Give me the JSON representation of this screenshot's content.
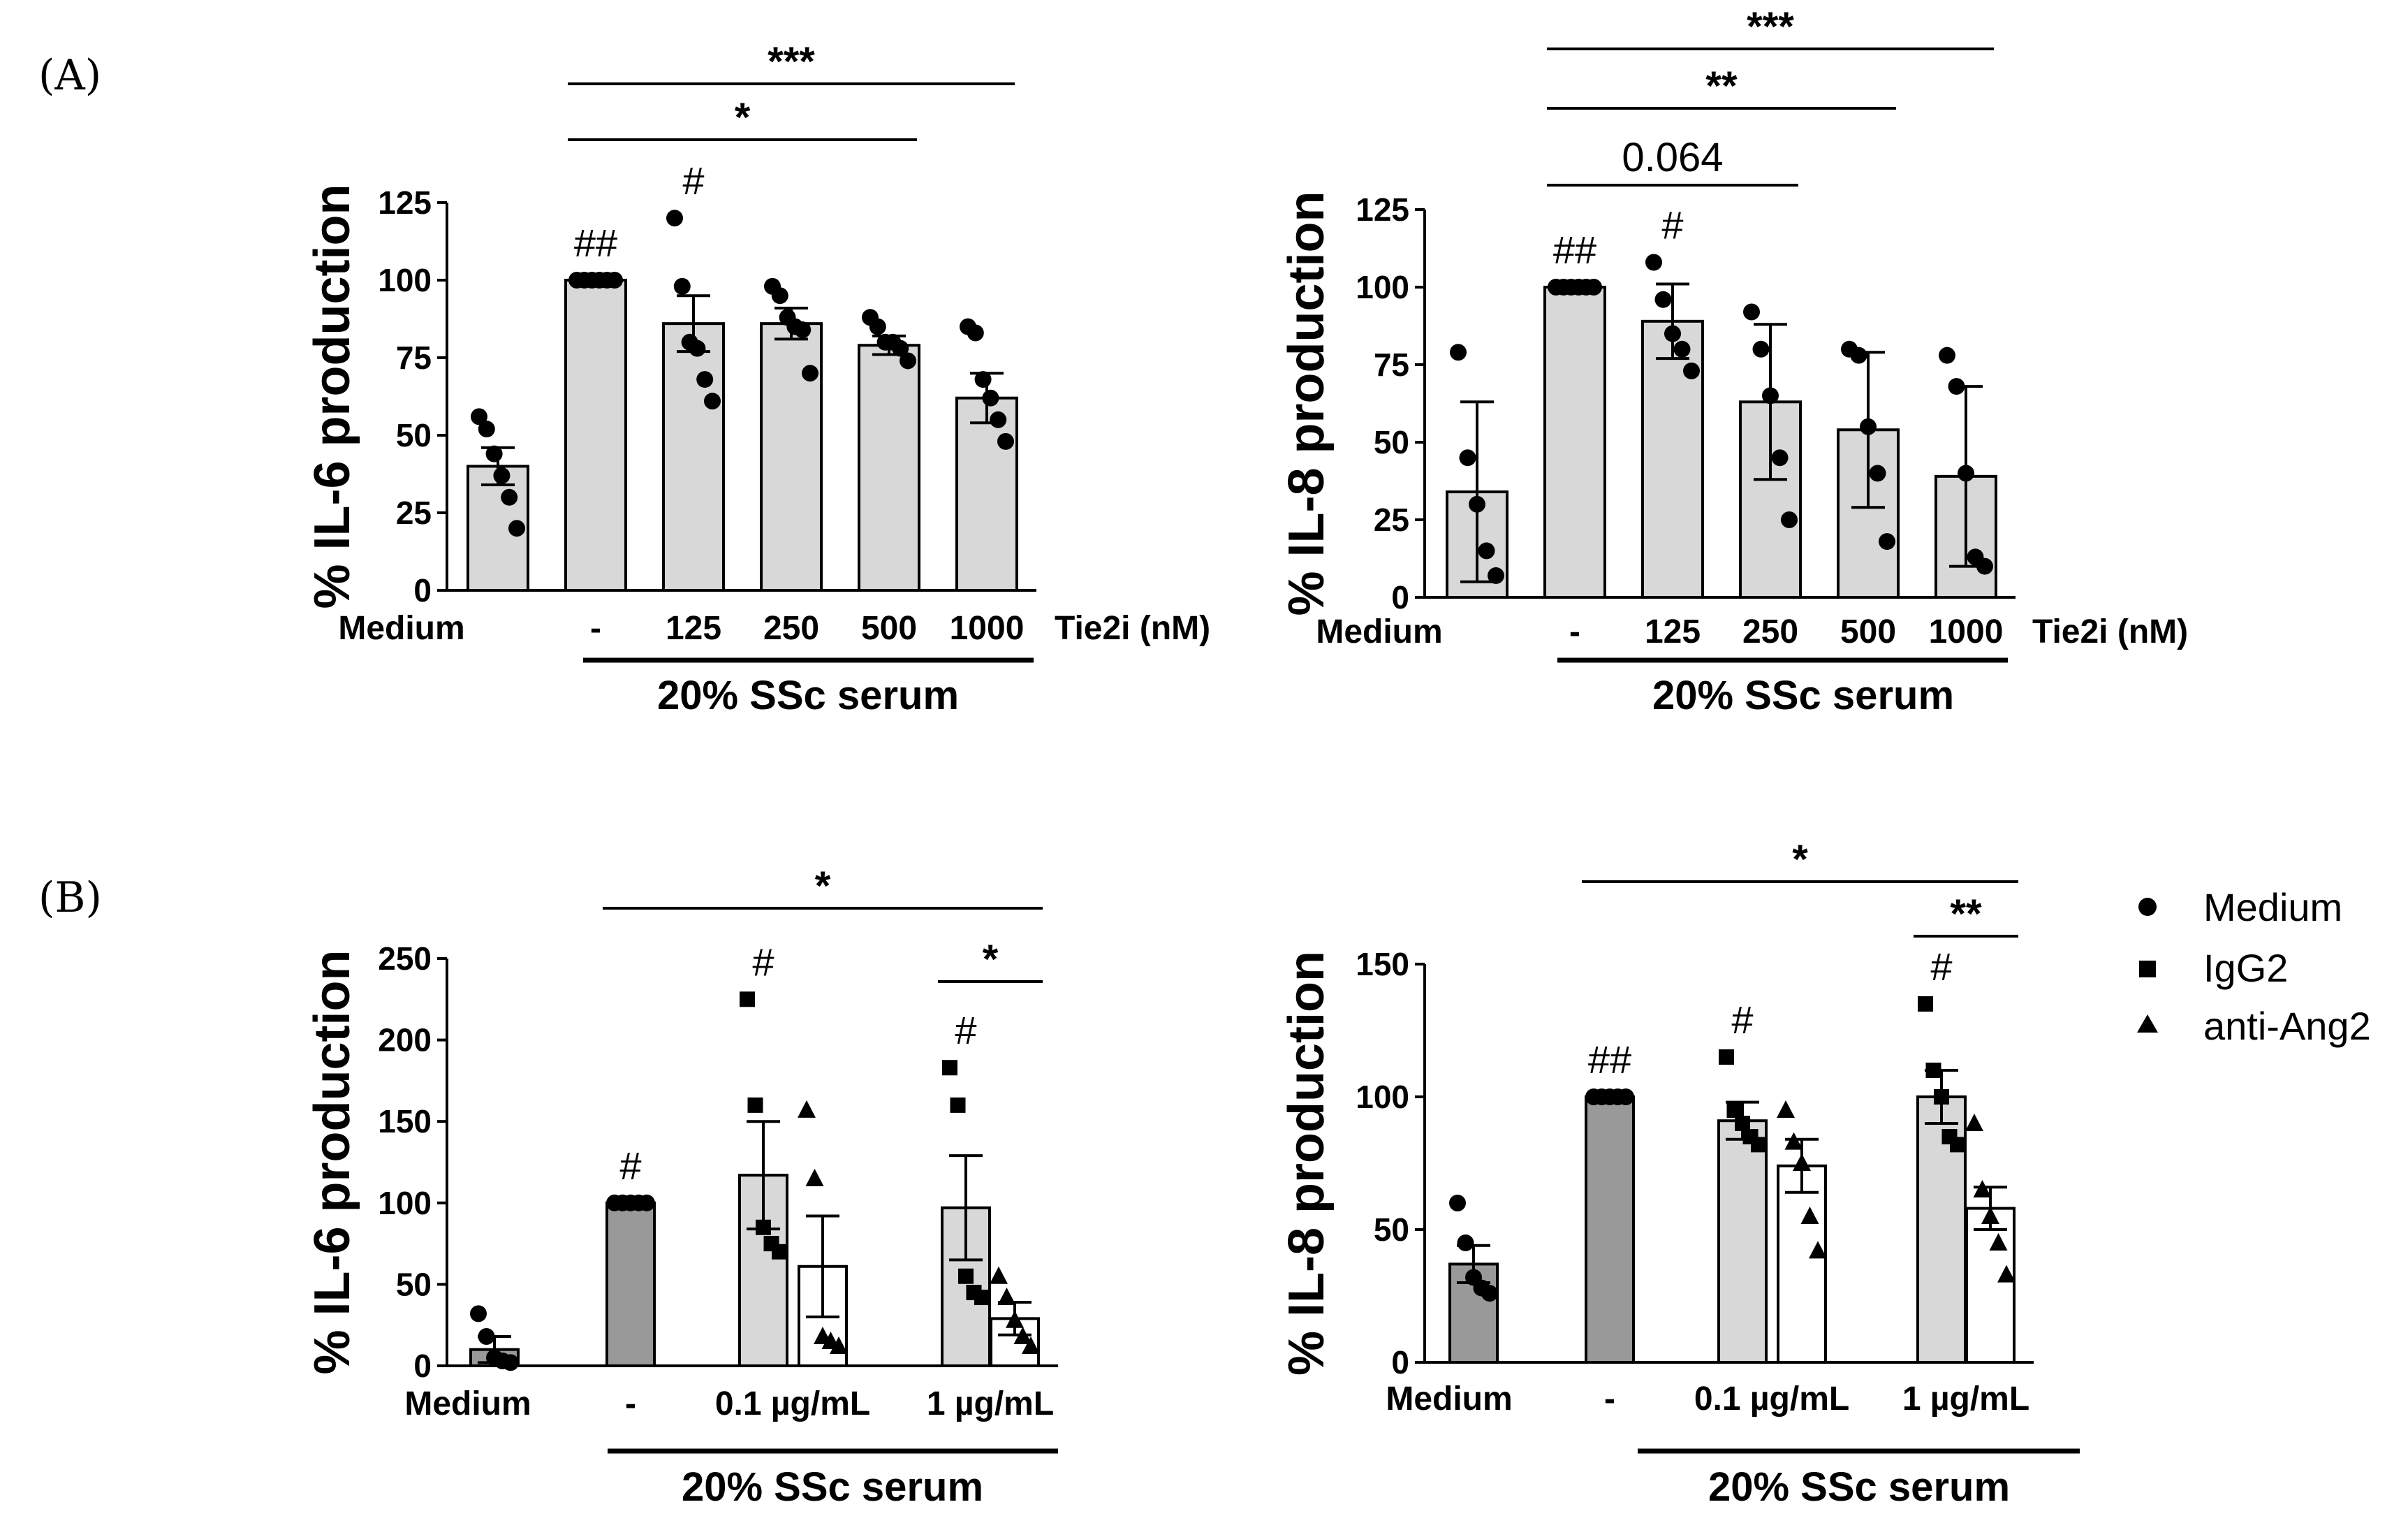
{
  "figure": {
    "panel_labels": [
      "(A)",
      "(B)"
    ],
    "legend": {
      "entries": [
        {
          "label": "Medium",
          "marker": "circle"
        },
        {
          "label": "IgG2",
          "marker": "square"
        },
        {
          "label": "anti-Ang2",
          "marker": "triangle"
        }
      ]
    }
  },
  "chart_data": [
    {
      "type": "bar",
      "panel": "A",
      "title": "",
      "ylabel": "% IL-6 production",
      "ylim": [
        0,
        125
      ],
      "yticks": [
        0,
        25,
        50,
        75,
        100,
        125
      ],
      "categories": [
        "Medium",
        "-",
        "125",
        "250",
        "500",
        "1000"
      ],
      "xlabel_suffix": "Tie2i (nM)",
      "group_label": "20% SSc serum",
      "bar_colors": [
        "#d8d8d8",
        "#d8d8d8",
        "#d8d8d8",
        "#d8d8d8",
        "#d8d8d8",
        "#d8d8d8"
      ],
      "values": [
        40,
        100,
        86,
        86,
        79,
        62
      ],
      "errors": [
        6,
        0,
        9,
        5,
        3,
        8
      ],
      "points": [
        [
          56,
          52,
          44,
          37,
          30,
          20
        ],
        [
          100,
          100,
          100,
          100,
          100,
          100
        ],
        [
          120,
          98,
          80,
          78,
          68,
          61
        ],
        [
          98,
          95,
          88,
          85,
          84,
          70
        ],
        [
          88,
          85,
          80,
          80,
          78,
          74
        ],
        [
          85,
          83,
          68,
          62,
          55,
          48
        ]
      ],
      "marker": "circle",
      "annotations": {
        "hash": [
          {
            "cat": 1,
            "text": "##"
          },
          {
            "cat": 2,
            "text": "#"
          }
        ],
        "brackets": [
          {
            "from": 1,
            "to": 5,
            "text": "***",
            "level": 2
          },
          {
            "from": 1,
            "to": 4,
            "text": "*",
            "level": 1
          }
        ]
      }
    },
    {
      "type": "bar",
      "panel": "A",
      "title": "",
      "ylabel": "% IL-8 production",
      "ylim": [
        0,
        125
      ],
      "yticks": [
        0,
        25,
        50,
        75,
        100,
        125
      ],
      "categories": [
        "Medium",
        "-",
        "125",
        "250",
        "500",
        "1000"
      ],
      "xlabel_suffix": "Tie2i (nM)",
      "group_label": "20% SSc serum",
      "bar_colors": [
        "#d8d8d8",
        "#d8d8d8",
        "#d8d8d8",
        "#d8d8d8",
        "#d8d8d8",
        "#d8d8d8"
      ],
      "values": [
        34,
        100,
        89,
        63,
        54,
        39
      ],
      "errors": [
        29,
        0,
        12,
        25,
        25,
        29
      ],
      "points": [
        [
          79,
          45,
          30,
          15,
          7
        ],
        [
          100,
          100,
          100,
          100,
          100,
          100
        ],
        [
          108,
          96,
          85,
          80,
          73
        ],
        [
          92,
          80,
          65,
          45,
          25
        ],
        [
          80,
          78,
          55,
          40,
          18
        ],
        [
          78,
          68,
          40,
          13,
          10
        ]
      ],
      "marker": "circle",
      "annotations": {
        "hash": [
          {
            "cat": 1,
            "text": "##"
          },
          {
            "cat": 2,
            "text": "#"
          }
        ],
        "brackets": [
          {
            "from": 1,
            "to": 5,
            "text": "***",
            "level": 3
          },
          {
            "from": 1,
            "to": 4,
            "text": "**",
            "level": 2
          },
          {
            "from": 1,
            "to": 3,
            "text": "0.064",
            "level": 1
          }
        ]
      }
    },
    {
      "type": "bar",
      "panel": "B",
      "title": "",
      "ylabel": "% IL-6 production",
      "ylim": [
        0,
        250
      ],
      "yticks": [
        0,
        50,
        100,
        150,
        200,
        250
      ],
      "categories": [
        "Medium",
        "-",
        "0.1 µg/mL",
        "1 µg/mL"
      ],
      "group_label": "20% SSc serum",
      "bars": [
        {
          "label": "Medium",
          "value": 10,
          "error": 8,
          "color": "#999999",
          "marker": "circle",
          "points": [
            32,
            18,
            5,
            3,
            2
          ]
        },
        {
          "label": "-",
          "value": 100,
          "error": 0,
          "color": "#999999",
          "marker": "circle",
          "points": [
            100,
            100,
            100,
            100,
            100
          ]
        },
        {
          "label": "IgG2 0.1",
          "value": 117,
          "error": 33,
          "color": "#d8d8d8",
          "marker": "square",
          "points": [
            225,
            160,
            85,
            75,
            70
          ]
        },
        {
          "label": "anti-Ang2 0.1",
          "value": 61,
          "error": 31,
          "color": "#ffffff",
          "marker": "triangle",
          "points": [
            157,
            115,
            18,
            15,
            12
          ]
        },
        {
          "label": "IgG2 1",
          "value": 97,
          "error": 32,
          "color": "#d8d8d8",
          "marker": "square",
          "points": [
            183,
            160,
            55,
            45,
            42
          ]
        },
        {
          "label": "anti-Ang2 1",
          "value": 29,
          "error": 10,
          "color": "#ffffff",
          "marker": "triangle",
          "points": [
            55,
            42,
            28,
            18,
            12
          ]
        }
      ],
      "annotations": {
        "hash": [
          {
            "bar": 1,
            "text": "#"
          },
          {
            "bar": 2,
            "text": "#"
          },
          {
            "bar": 4,
            "text": "#"
          }
        ],
        "brackets": [
          {
            "from": 1,
            "to": 5,
            "text": "*",
            "level": 2
          },
          {
            "from": 4,
            "to": 5,
            "text": "*",
            "level": 1
          }
        ]
      }
    },
    {
      "type": "bar",
      "panel": "B",
      "title": "",
      "ylabel": "% IL-8 production",
      "ylim": [
        0,
        150
      ],
      "yticks": [
        0,
        50,
        100,
        150
      ],
      "categories": [
        "Medium",
        "-",
        "0.1 µg/mL",
        "1 µg/mL"
      ],
      "group_label": "20% SSc serum",
      "bars": [
        {
          "label": "Medium",
          "value": 37,
          "error": 7,
          "color": "#999999",
          "marker": "circle",
          "points": [
            60,
            45,
            32,
            28,
            26
          ]
        },
        {
          "label": "-",
          "value": 100,
          "error": 0,
          "color": "#999999",
          "marker": "circle",
          "points": [
            100,
            100,
            100,
            100,
            100
          ]
        },
        {
          "label": "IgG2 0.1",
          "value": 91,
          "error": 7,
          "color": "#d8d8d8",
          "marker": "square",
          "points": [
            115,
            95,
            90,
            85,
            82
          ]
        },
        {
          "label": "anti-Ang2 0.1",
          "value": 74,
          "error": 10,
          "color": "#ffffff",
          "marker": "triangle",
          "points": [
            95,
            83,
            75,
            55,
            42
          ]
        },
        {
          "label": "IgG2 1",
          "value": 100,
          "error": 10,
          "color": "#d8d8d8",
          "marker": "square",
          "points": [
            135,
            110,
            100,
            85,
            82
          ]
        },
        {
          "label": "anti-Ang2 1",
          "value": 58,
          "error": 8,
          "color": "#ffffff",
          "marker": "triangle",
          "points": [
            90,
            65,
            55,
            45,
            33
          ]
        }
      ],
      "annotations": {
        "hash": [
          {
            "bar": 1,
            "text": "##"
          },
          {
            "bar": 2,
            "text": "#"
          },
          {
            "bar": 4,
            "text": "#"
          }
        ],
        "brackets": [
          {
            "from": 1,
            "to": 5,
            "text": "*",
            "level": 2
          },
          {
            "from": 4,
            "to": 5,
            "text": "**",
            "level": 1
          }
        ]
      }
    }
  ]
}
